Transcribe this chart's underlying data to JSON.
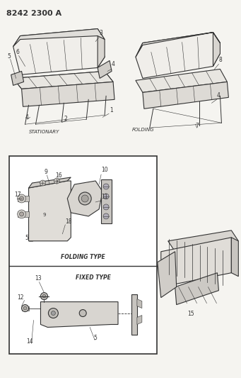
{
  "title": "8242 2300 A",
  "bg": "#f5f4f0",
  "fg": "#333333",
  "fig_w": 3.41,
  "fig_h": 5.33,
  "dpi": 100,
  "stationary_label": "STATIONARY",
  "folding_label": "FOLDING",
  "folding_type_label": "FOLDING TYPE",
  "fixed_type_label": "FIXED TYPE",
  "lw_main": 0.8,
  "lw_thin": 0.4,
  "fs_title": 8,
  "fs_num": 5.5,
  "fs_label": 5.0
}
